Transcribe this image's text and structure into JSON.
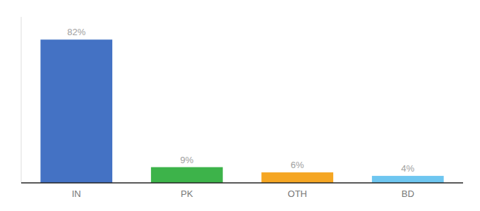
{
  "chart_data": {
    "type": "bar",
    "categories": [
      "IN",
      "PK",
      "OTH",
      "BD"
    ],
    "values": [
      82,
      9,
      6,
      4
    ],
    "value_labels": [
      "82%",
      "9%",
      "6%",
      "4%"
    ],
    "colors": [
      "#4472c4",
      "#3db34a",
      "#f5a623",
      "#6ec6f0"
    ],
    "ylim": [
      0,
      95
    ],
    "data_labels": true,
    "tick_labels": "x",
    "grid": false
  }
}
